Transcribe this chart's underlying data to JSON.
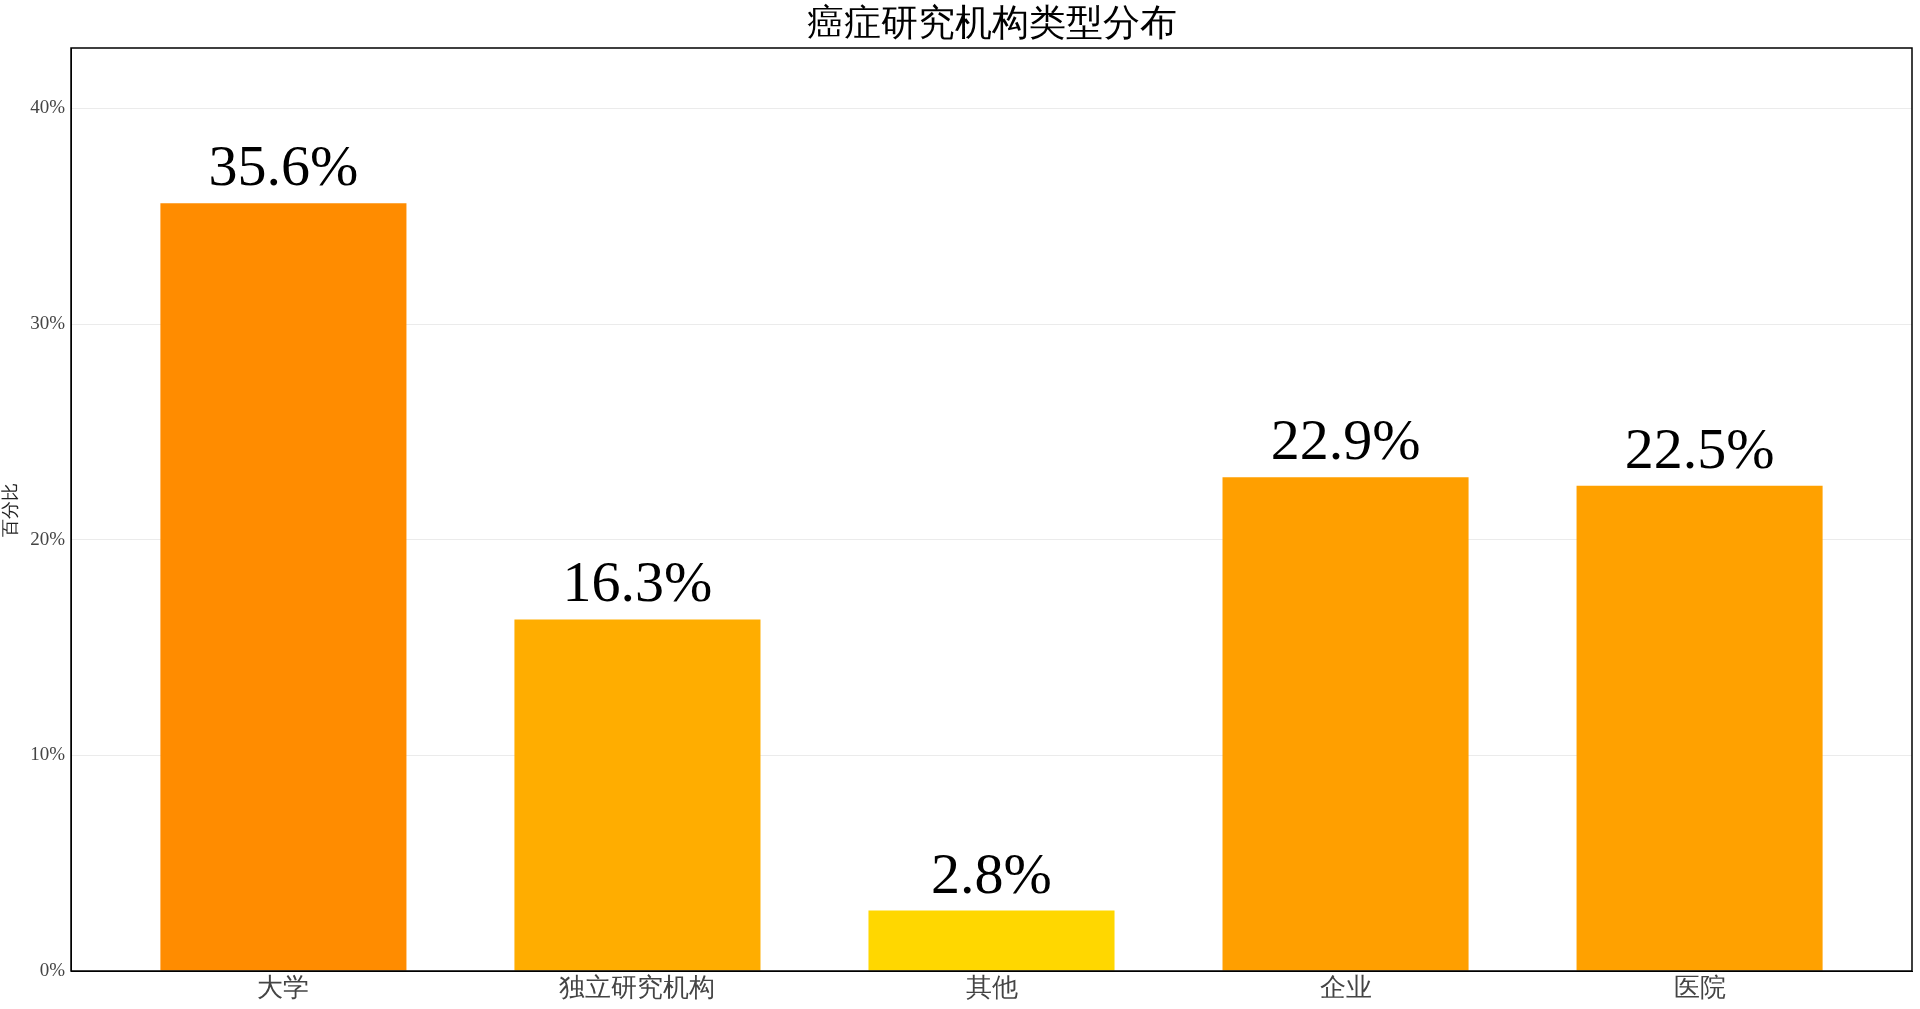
{
  "chart_data": {
    "type": "bar",
    "title": "癌症研究机构类型分布",
    "ylabel": "百分比",
    "categories": [
      "大学",
      "独立研究机构",
      "其他",
      "企业",
      "医院"
    ],
    "values": [
      35.6,
      16.3,
      2.8,
      22.9,
      22.5
    ],
    "colors": [
      "#ff8c00",
      "#ffad00",
      "#ffd700",
      "#ff9f00",
      "#ffa100"
    ],
    "value_labels": [
      "35.6%",
      "16.3%",
      "2.8%",
      "22.9%",
      "22.5%"
    ],
    "ylim": [
      0,
      42.8
    ],
    "yticks": [
      {
        "value": 0,
        "label": "0%"
      },
      {
        "value": 10,
        "label": "10%"
      },
      {
        "value": 20,
        "label": "20%"
      },
      {
        "value": 30,
        "label": "30%"
      },
      {
        "value": 40,
        "label": "40%"
      }
    ],
    "grid": "y"
  }
}
